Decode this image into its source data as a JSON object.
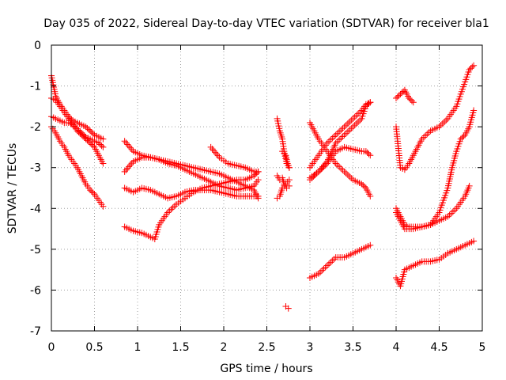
{
  "chart_data": {
    "type": "scatter",
    "title": "Day 035 of 2022, Sidereal Day-to-day VTEC variation (SDTVAR) for receiver bla1",
    "xlabel": "GPS time / hours",
    "ylabel": "SDTVAR / TECUs",
    "xlim": [
      0,
      5
    ],
    "ylim": [
      -7,
      0
    ],
    "xticks": [
      0,
      0.5,
      1,
      1.5,
      2,
      2.5,
      3,
      3.5,
      4,
      4.5,
      5
    ],
    "xtick_labels": [
      "0",
      "0.5",
      "1",
      "1.5",
      "2",
      "2.5",
      "3",
      "3.5",
      "4",
      "4.5",
      "5"
    ],
    "yticks": [
      0,
      -1,
      -2,
      -3,
      -4,
      -5,
      -6,
      -7
    ],
    "ytick_labels": [
      "0",
      "-1",
      "-2",
      "-3",
      "-4",
      "-5",
      "-6",
      "-7"
    ],
    "grid": true,
    "marker": "+",
    "color": "#ff0000",
    "tracks": [
      {
        "name": "track-1",
        "x": [
          0.0,
          0.05,
          0.1,
          0.15,
          0.2,
          0.25,
          0.3,
          0.35,
          0.4,
          0.45,
          0.5,
          0.55,
          0.6
        ],
        "y": [
          -0.75,
          -1.25,
          -1.45,
          -1.6,
          -1.75,
          -1.85,
          -1.9,
          -1.95,
          -2.0,
          -2.1,
          -2.2,
          -2.25,
          -2.3
        ]
      },
      {
        "name": "track-2",
        "x": [
          0.0,
          0.05,
          0.1,
          0.15,
          0.2,
          0.25,
          0.3,
          0.35,
          0.4,
          0.45,
          0.5,
          0.55,
          0.6
        ],
        "y": [
          -1.3,
          -1.35,
          -1.5,
          -1.65,
          -1.8,
          -1.95,
          -2.1,
          -2.2,
          -2.3,
          -2.4,
          -2.5,
          -2.7,
          -2.9
        ]
      },
      {
        "name": "track-3",
        "x": [
          0.0,
          0.05,
          0.1,
          0.15,
          0.2,
          0.25,
          0.3,
          0.35,
          0.4,
          0.45,
          0.5,
          0.55,
          0.6
        ],
        "y": [
          -1.75,
          -1.8,
          -1.85,
          -1.9,
          -1.9,
          -1.95,
          -2.05,
          -2.15,
          -2.25,
          -2.3,
          -2.35,
          -2.4,
          -2.5
        ]
      },
      {
        "name": "track-4",
        "x": [
          0.0,
          0.05,
          0.1,
          0.15,
          0.2,
          0.25,
          0.3,
          0.35,
          0.4,
          0.45,
          0.5,
          0.55,
          0.6
        ],
        "y": [
          -2.0,
          -2.15,
          -2.35,
          -2.5,
          -2.7,
          -2.85,
          -3.0,
          -3.2,
          -3.4,
          -3.55,
          -3.65,
          -3.8,
          -3.95
        ]
      },
      {
        "name": "track-5",
        "x": [
          0.85,
          0.95,
          1.05,
          1.15,
          1.25,
          1.35,
          1.45,
          1.55,
          1.65,
          1.75,
          1.85,
          1.95,
          2.05,
          2.15,
          2.25,
          2.35,
          2.4
        ],
        "y": [
          -2.35,
          -2.6,
          -2.7,
          -2.75,
          -2.8,
          -2.85,
          -2.9,
          -2.95,
          -3.0,
          -3.05,
          -3.1,
          -3.15,
          -3.25,
          -3.35,
          -3.45,
          -3.55,
          -3.75
        ]
      },
      {
        "name": "track-6",
        "x": [
          0.85,
          0.95,
          1.05,
          1.15,
          1.25,
          1.35,
          1.45,
          1.55,
          1.65,
          1.75,
          1.85,
          1.95,
          2.05,
          2.15,
          2.25,
          2.35,
          2.4
        ],
        "y": [
          -3.1,
          -2.85,
          -2.75,
          -2.75,
          -2.8,
          -2.9,
          -2.95,
          -3.05,
          -3.15,
          -3.25,
          -3.35,
          -3.45,
          -3.5,
          -3.55,
          -3.5,
          -3.45,
          -3.3
        ]
      },
      {
        "name": "track-7",
        "x": [
          0.85,
          0.95,
          1.05,
          1.15,
          1.25,
          1.35,
          1.45,
          1.55,
          1.65,
          1.75,
          1.85,
          1.95,
          2.05,
          2.15,
          2.25,
          2.35,
          2.4
        ],
        "y": [
          -3.5,
          -3.6,
          -3.5,
          -3.55,
          -3.65,
          -3.75,
          -3.7,
          -3.6,
          -3.55,
          -3.55,
          -3.55,
          -3.6,
          -3.65,
          -3.7,
          -3.7,
          -3.7,
          -3.7
        ]
      },
      {
        "name": "track-8",
        "x": [
          0.85,
          0.95,
          1.05,
          1.15,
          1.2,
          1.25,
          1.35,
          1.45,
          1.55,
          1.65,
          1.75,
          1.85,
          1.95,
          2.05,
          2.15,
          2.25,
          2.35,
          2.4
        ],
        "y": [
          -4.45,
          -4.55,
          -4.6,
          -4.7,
          -4.75,
          -4.4,
          -4.1,
          -3.9,
          -3.75,
          -3.6,
          -3.5,
          -3.45,
          -3.4,
          -3.35,
          -3.3,
          -3.3,
          -3.2,
          -3.1
        ]
      },
      {
        "name": "track-9",
        "x": [
          1.85,
          1.95,
          2.05,
          2.15,
          2.25,
          2.35,
          2.4
        ],
        "y": [
          -2.5,
          -2.75,
          -2.9,
          -2.95,
          -3.0,
          -3.1,
          -3.1
        ]
      },
      {
        "name": "track-10",
        "x": [
          2.62,
          2.65,
          2.68,
          2.7,
          2.73,
          2.76
        ],
        "y": [
          -1.8,
          -2.1,
          -2.3,
          -2.6,
          -2.9,
          -3.0
        ]
      },
      {
        "name": "track-11",
        "x": [
          2.62,
          2.65,
          2.68,
          2.7,
          2.73,
          2.76
        ],
        "y": [
          -3.2,
          -3.3,
          -3.25,
          -3.4,
          -3.5,
          -3.45
        ]
      },
      {
        "name": "track-12",
        "x": [
          2.62,
          2.65,
          2.68,
          2.72,
          2.76
        ],
        "y": [
          -3.75,
          -3.7,
          -3.5,
          -3.4,
          -3.3
        ]
      },
      {
        "name": "track-13",
        "x": [
          2.68,
          2.72,
          2.74,
          2.76
        ],
        "y": [
          -2.6,
          -2.7,
          -2.9,
          -3.0
        ]
      },
      {
        "name": "track-14",
        "x": [
          2.72,
          2.75
        ],
        "y": [
          -6.4,
          -6.45
        ]
      },
      {
        "name": "track-15",
        "x": [
          3.0,
          3.1,
          3.2,
          3.3,
          3.4,
          3.5,
          3.6,
          3.65,
          3.7
        ],
        "y": [
          -3.0,
          -2.7,
          -2.4,
          -2.2,
          -2.0,
          -1.8,
          -1.6,
          -1.45,
          -1.4
        ]
      },
      {
        "name": "track-16",
        "x": [
          3.0,
          3.1,
          3.2,
          3.3,
          3.4,
          3.5,
          3.6,
          3.65,
          3.7
        ],
        "y": [
          -1.9,
          -2.3,
          -2.6,
          -2.9,
          -3.1,
          -3.3,
          -3.4,
          -3.5,
          -3.7
        ]
      },
      {
        "name": "track-17",
        "x": [
          3.0,
          3.1,
          3.2,
          3.3,
          3.4,
          3.5,
          3.6,
          3.65,
          3.7
        ],
        "y": [
          -3.3,
          -3.1,
          -2.9,
          -2.6,
          -2.5,
          -2.55,
          -2.6,
          -2.6,
          -2.7
        ]
      },
      {
        "name": "track-18",
        "x": [
          3.0,
          3.1,
          3.2,
          3.3,
          3.4,
          3.5,
          3.6,
          3.65,
          3.7
        ],
        "y": [
          -3.25,
          -3.1,
          -2.85,
          -2.4,
          -2.2,
          -2.0,
          -1.8,
          -1.5,
          -1.4
        ]
      },
      {
        "name": "track-19",
        "x": [
          3.0,
          3.1,
          3.2,
          3.3,
          3.4,
          3.5,
          3.6,
          3.65,
          3.7
        ],
        "y": [
          -5.7,
          -5.6,
          -5.4,
          -5.2,
          -5.2,
          -5.1,
          -5.0,
          -4.95,
          -4.9
        ]
      },
      {
        "name": "track-20",
        "x": [
          4.0,
          4.05,
          4.1,
          4.15,
          4.2
        ],
        "y": [
          -1.3,
          -1.2,
          -1.1,
          -1.3,
          -1.4
        ]
      },
      {
        "name": "track-21",
        "x": [
          4.0,
          4.05,
          4.1,
          4.15,
          4.2,
          4.25,
          4.3,
          4.4,
          4.5,
          4.6,
          4.7,
          4.75,
          4.8,
          4.85,
          4.9
        ],
        "y": [
          -2.0,
          -3.0,
          -3.05,
          -2.9,
          -2.7,
          -2.5,
          -2.3,
          -2.1,
          -2.0,
          -1.8,
          -1.5,
          -1.2,
          -0.9,
          -0.6,
          -0.5
        ]
      },
      {
        "name": "track-22",
        "x": [
          4.0,
          4.05,
          4.1,
          4.15,
          4.2,
          4.3,
          4.4,
          4.5,
          4.55,
          4.6,
          4.65,
          4.7,
          4.75,
          4.8,
          4.85,
          4.9
        ],
        "y": [
          -4.0,
          -4.2,
          -4.4,
          -4.45,
          -4.45,
          -4.45,
          -4.4,
          -4.1,
          -3.8,
          -3.5,
          -3.0,
          -2.6,
          -2.3,
          -2.2,
          -2.0,
          -1.6
        ]
      },
      {
        "name": "track-23",
        "x": [
          4.0,
          4.05,
          4.1,
          4.15,
          4.2,
          4.3,
          4.4,
          4.5,
          4.6,
          4.7,
          4.8,
          4.85
        ],
        "y": [
          -4.1,
          -4.3,
          -4.5,
          -4.5,
          -4.5,
          -4.45,
          -4.4,
          -4.3,
          -4.2,
          -4.0,
          -3.7,
          -3.45
        ]
      },
      {
        "name": "track-24",
        "x": [
          4.0,
          4.05,
          4.1,
          4.2,
          4.3,
          4.4,
          4.5,
          4.6,
          4.7,
          4.8,
          4.9
        ],
        "y": [
          -5.7,
          -5.9,
          -5.5,
          -5.4,
          -5.3,
          -5.3,
          -5.25,
          -5.1,
          -5.0,
          -4.9,
          -4.8
        ]
      }
    ]
  }
}
